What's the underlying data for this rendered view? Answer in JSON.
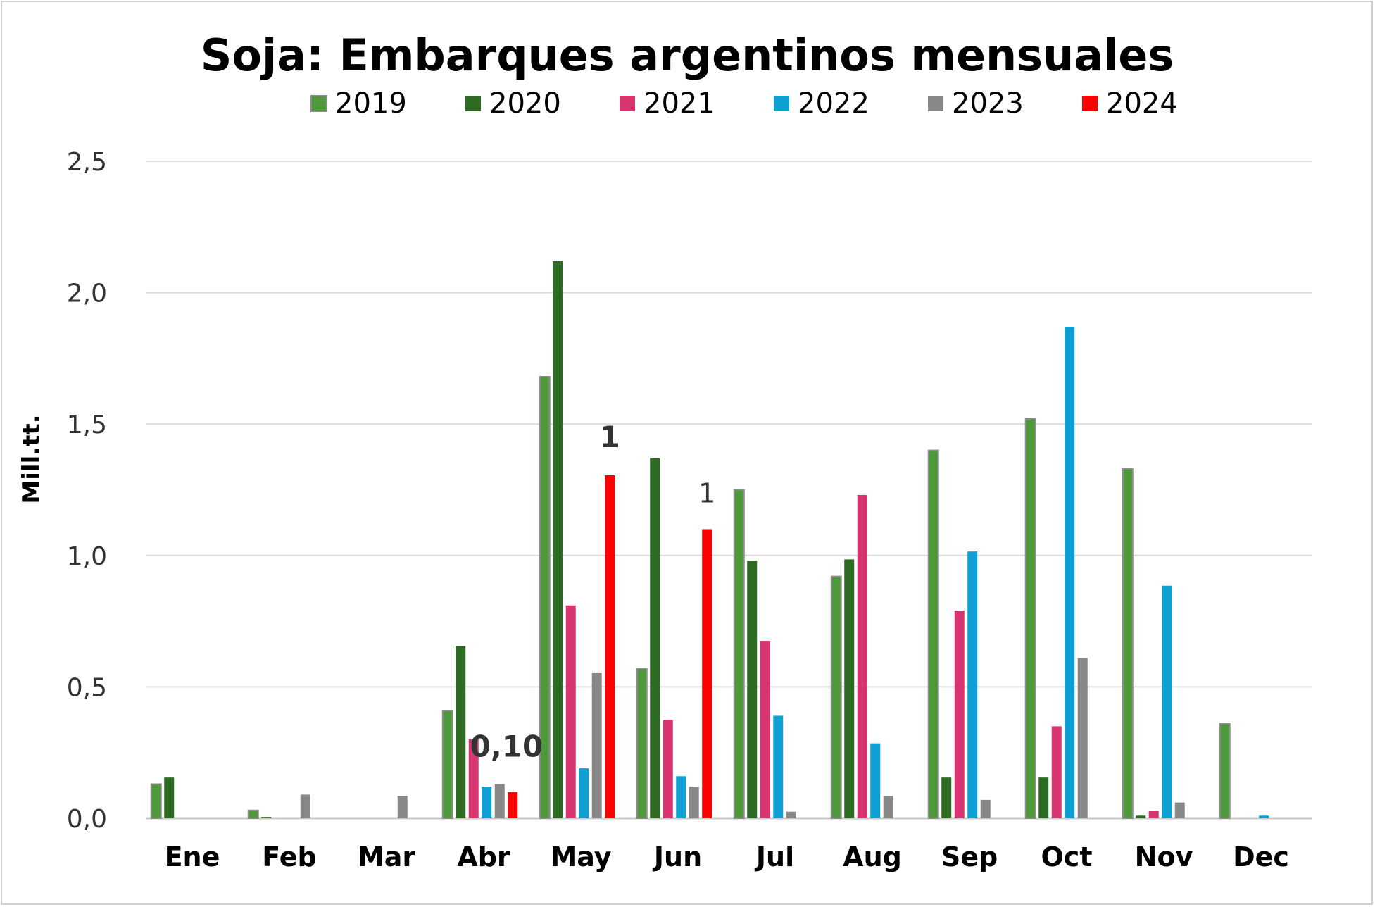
{
  "chart_data": {
    "type": "bar",
    "title": "Soja: Embarques argentinos mensuales",
    "ylabel": "Mill.tt.",
    "xlabel": "",
    "ylim": [
      0,
      2.5
    ],
    "yticks": [
      {
        "value": 0.0,
        "label": "0,0"
      },
      {
        "value": 0.5,
        "label": "0,5"
      },
      {
        "value": 1.0,
        "label": "1,0"
      },
      {
        "value": 1.5,
        "label": "1,5"
      },
      {
        "value": 2.0,
        "label": "2,0"
      },
      {
        "value": 2.5,
        "label": "2,5"
      }
    ],
    "grid": true,
    "legend_position": "top",
    "categories": [
      "Ene",
      "Feb",
      "Mar",
      "Abr",
      "May",
      "Jun",
      "Jul",
      "Aug",
      "Sep",
      "Oct",
      "Nov",
      "Dec"
    ],
    "series": [
      {
        "name": "2019",
        "color": "#4e9a3a",
        "outline": "#8c8c8c",
        "values": [
          0.13,
          0.03,
          0.0,
          0.41,
          1.68,
          0.57,
          1.25,
          0.92,
          1.4,
          1.52,
          1.33,
          0.36
        ]
      },
      {
        "name": "2020",
        "color": "#2d6a22",
        "values": [
          0.155,
          0.005,
          0.0,
          0.655,
          2.12,
          1.37,
          0.98,
          0.985,
          0.155,
          0.155,
          0.01,
          0.0
        ]
      },
      {
        "name": "2021",
        "color": "#d63570",
        "values": [
          0.0,
          0.0,
          0.0,
          0.3,
          0.81,
          0.375,
          0.675,
          1.23,
          0.79,
          0.35,
          0.028,
          0.0
        ]
      },
      {
        "name": "2022",
        "color": "#0f9fd2",
        "values": [
          0.0,
          0.0,
          0.0,
          0.12,
          0.19,
          0.16,
          0.39,
          0.285,
          1.015,
          1.87,
          0.885,
          0.01
        ]
      },
      {
        "name": "2023",
        "color": "#888888",
        "values": [
          0.0,
          0.09,
          0.085,
          0.13,
          0.555,
          0.12,
          0.025,
          0.085,
          0.07,
          0.61,
          0.06,
          0.0
        ]
      },
      {
        "name": "2024",
        "color": "#ff0000",
        "values": [
          0.0,
          0.0,
          0.0,
          0.1,
          1.305,
          1.1,
          0.0,
          0.0,
          0.0,
          0.0,
          0.0,
          0.0
        ]
      }
    ],
    "annotations": [
      {
        "text": "0,10",
        "category": "Abr",
        "series": "2024",
        "style": "bold"
      },
      {
        "text": "1",
        "category": "May",
        "series": "2024",
        "style": "bold"
      },
      {
        "text": "1",
        "category": "Jun",
        "series": "2024",
        "style": "plain"
      }
    ]
  }
}
